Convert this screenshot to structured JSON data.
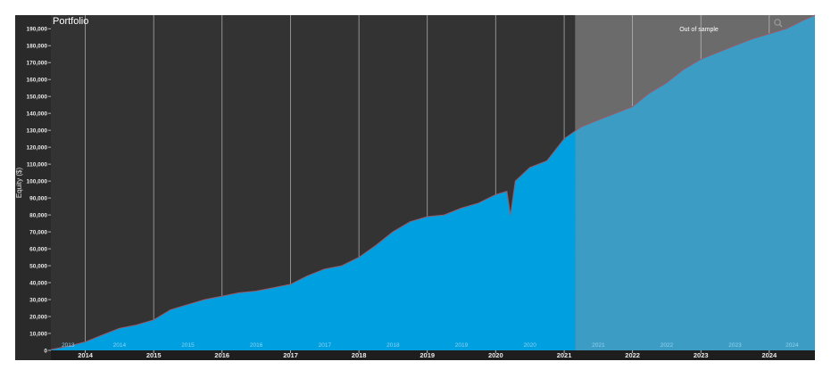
{
  "chart_data": {
    "type": "area",
    "title": "Portfolio",
    "ylabel": "Equity ($)",
    "xlabel": "",
    "ylim": [
      0,
      198000
    ],
    "xlim": [
      "2013-07-01",
      "2024-09-01"
    ],
    "y_ticks": [
      0,
      10000,
      20000,
      30000,
      40000,
      50000,
      60000,
      70000,
      80000,
      90000,
      100000,
      110000,
      120000,
      130000,
      140000,
      150000,
      160000,
      170000,
      180000,
      190000
    ],
    "y_tick_labels": [
      "0",
      "10,000",
      "20,000",
      "30,000",
      "40,000",
      "50,000",
      "60,000",
      "70,000",
      "80,000",
      "90,000",
      "100,000",
      "110,000",
      "120,000",
      "130,000",
      "140,000",
      "150,000",
      "160,000",
      "170,000",
      "180,000",
      "190,000"
    ],
    "x_ticks": [
      "2014",
      "2015",
      "2016",
      "2017",
      "2018",
      "2019",
      "2020",
      "2021",
      "2022",
      "2023",
      "2024"
    ],
    "period_labels": [
      "2013",
      "2014",
      "2015",
      "2016",
      "2017",
      "2018",
      "2019",
      "2020",
      "2021",
      "2022",
      "2023",
      "2024"
    ],
    "out_of_sample_start": "2021-03-01",
    "out_of_sample_label": "Out of sample",
    "grid": "vertical year lines",
    "legend": "none",
    "colors": {
      "in_sample_background": "#333333",
      "out_of_sample_background": "#6b6b6b",
      "in_sample_fill": "#009fe0",
      "out_of_sample_fill": "#3d9cc4",
      "equity_line": "#9a5a6a",
      "tick_text": "#e8e8e8",
      "period_text": "#8fd4f2",
      "bottom_axis_background": "#1e1e1e"
    },
    "series": [
      {
        "x": [
          "2013-07-01",
          "2013-10-01",
          "2014-01-01",
          "2014-04-01",
          "2014-07-01",
          "2014-10-01",
          "2015-01-01",
          "2015-04-01",
          "2015-07-01",
          "2015-10-01",
          "2016-01-01",
          "2016-04-01",
          "2016-07-01",
          "2016-10-01",
          "2017-01-01",
          "2017-04-01",
          "2017-07-01",
          "2017-10-01",
          "2018-01-01",
          "2018-04-01",
          "2018-07-01",
          "2018-10-01",
          "2019-01-01",
          "2019-04-01",
          "2019-07-01",
          "2019-10-01",
          "2020-01-01",
          "2020-03-01",
          "2020-03-20",
          "2020-04-15",
          "2020-07-01",
          "2020-10-01",
          "2021-01-01",
          "2021-04-01",
          "2021-07-01",
          "2021-10-01",
          "2022-01-01",
          "2022-04-01",
          "2022-07-01",
          "2022-10-01",
          "2023-01-01",
          "2023-04-01",
          "2023-07-01",
          "2023-10-01",
          "2024-01-01",
          "2024-04-01",
          "2024-07-01",
          "2024-09-01"
        ],
        "values": [
          500,
          2500,
          5000,
          9000,
          13000,
          15000,
          18000,
          24000,
          27000,
          30000,
          32000,
          34000,
          35000,
          37000,
          39000,
          44000,
          48000,
          50000,
          55000,
          62000,
          70000,
          76000,
          79000,
          80000,
          84000,
          87000,
          92000,
          94000,
          80000,
          100000,
          108000,
          112000,
          125000,
          132000,
          136000,
          140000,
          144000,
          152000,
          158000,
          166000,
          172000,
          176000,
          180000,
          184000,
          187000,
          190000,
          195000,
          198000
        ]
      }
    ]
  }
}
